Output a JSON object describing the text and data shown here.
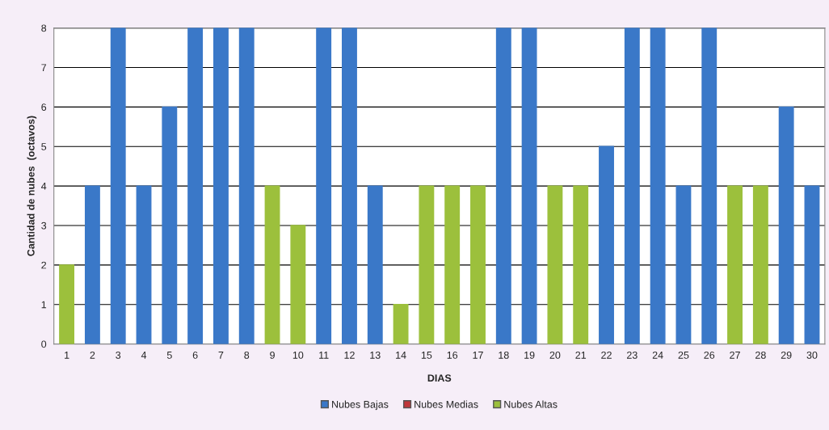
{
  "chart_data": {
    "type": "bar",
    "stacked": true,
    "xlabel": "DIAS",
    "ylabel": "Cantidad de nubes  (octavos)",
    "categories": [
      "1",
      "2",
      "3",
      "4",
      "5",
      "6",
      "7",
      "8",
      "9",
      "10",
      "11",
      "12",
      "13",
      "14",
      "15",
      "16",
      "17",
      "18",
      "19",
      "20",
      "21",
      "22",
      "23",
      "24",
      "25",
      "26",
      "27",
      "28",
      "29",
      "30"
    ],
    "series": [
      {
        "name": "Nubes Bajas",
        "color": "#3a78c8",
        "values": [
          null,
          4,
          8,
          4,
          6,
          8,
          8,
          8,
          null,
          null,
          8,
          8,
          4,
          null,
          null,
          null,
          null,
          8,
          8,
          null,
          null,
          5,
          8,
          8,
          4,
          8,
          null,
          null,
          6,
          4
        ]
      },
      {
        "name": "Nubes Medias",
        "color": "#c0363a",
        "values": [
          null,
          null,
          null,
          null,
          null,
          null,
          null,
          null,
          null,
          null,
          null,
          null,
          null,
          null,
          null,
          null,
          null,
          null,
          null,
          null,
          null,
          null,
          null,
          null,
          null,
          null,
          null,
          null,
          null,
          null
        ]
      },
      {
        "name": "Nubes Altas",
        "color": "#9cc03c",
        "values": [
          2,
          null,
          null,
          null,
          null,
          null,
          null,
          null,
          4,
          3,
          null,
          null,
          null,
          1,
          4,
          4,
          4,
          null,
          null,
          4,
          4,
          null,
          null,
          null,
          null,
          null,
          4,
          4,
          null,
          null
        ]
      }
    ],
    "ylim": [
      0,
      8
    ],
    "yticks": [
      0,
      1,
      2,
      3,
      4,
      5,
      6,
      7,
      8
    ],
    "grid": "y",
    "legend": "bottom"
  }
}
